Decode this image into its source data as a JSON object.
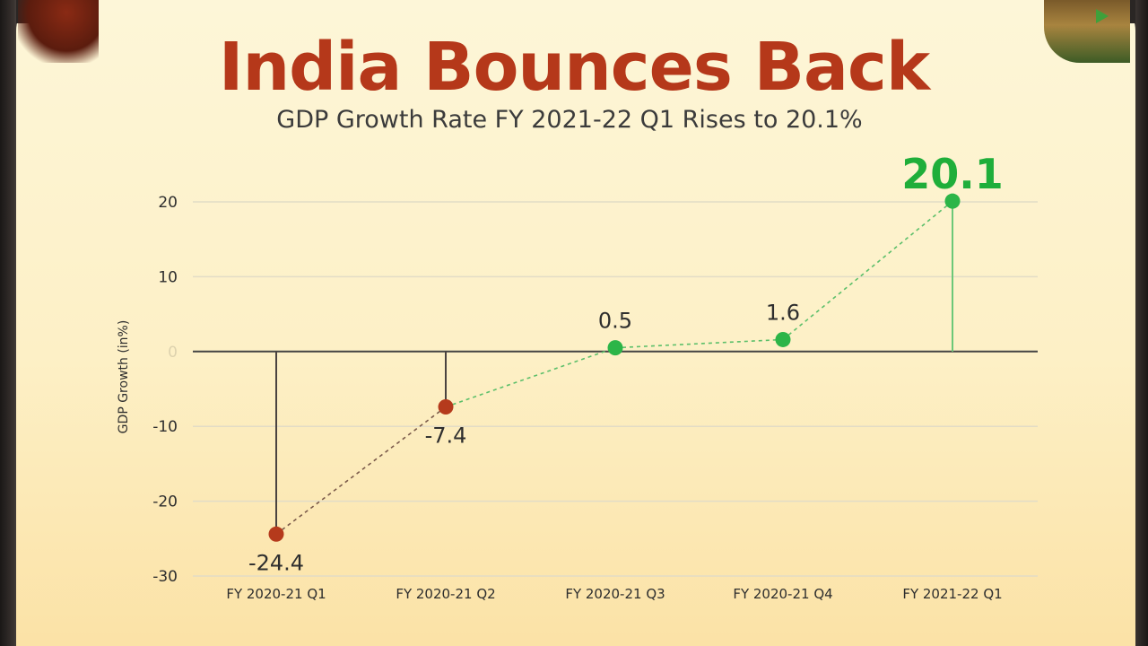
{
  "title": "India Bounces Back",
  "subtitle": "GDP Growth Rate FY 2021-22 Q1 Rises to 20.1%",
  "colors": {
    "negative": "#b53a1c",
    "positive": "#2cb548",
    "highlight": "#1fae3a",
    "grid": "#e2dcc6",
    "zero_line": "#444444",
    "title": "#b5381a"
  },
  "chart_data": {
    "type": "line",
    "categories": [
      "FY 2020-21 Q1",
      "FY 2020-21 Q2",
      "FY 2020-21 Q3",
      "FY 2020-21 Q4",
      "FY 2021-22 Q1"
    ],
    "values": [
      -24.4,
      -7.4,
      0.5,
      1.6,
      20.1
    ],
    "value_labels": [
      "-24.4",
      "-7.4",
      "0.5",
      "1.6",
      "20.1"
    ],
    "ylabel": "GDP Growth (in%)",
    "ylim": [
      -30,
      20
    ],
    "yticks": [
      20,
      10,
      0,
      -10,
      -20,
      -30
    ],
    "ytick_labels": [
      "20",
      "10",
      "0",
      "-10",
      "-20",
      "-30"
    ],
    "grid": true,
    "stem_lines": true,
    "connecting_line": "dashed"
  }
}
